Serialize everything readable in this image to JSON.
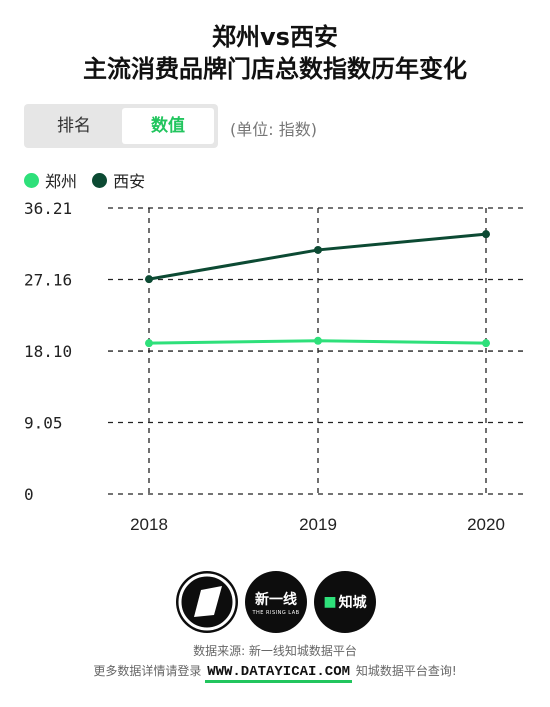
{
  "header": {
    "title_line1": "郑州vs西安",
    "title_line2": "主流消费品牌门店总数指数历年变化"
  },
  "tabs": {
    "rank_label": "排名",
    "value_label": "数值"
  },
  "unit_label": "(单位: 指数)",
  "legend": [
    {
      "label": "郑州",
      "color": "#2ee07a"
    },
    {
      "label": "西安",
      "color": "#0c4a33"
    }
  ],
  "chart_data": {
    "type": "line",
    "categories": [
      "2018",
      "2019",
      "2020"
    ],
    "series": [
      {
        "name": "郑州",
        "color": "#2ee07a",
        "values": [
          19.1,
          19.4,
          19.1
        ]
      },
      {
        "name": "西安",
        "color": "#0c4a33",
        "values": [
          27.2,
          30.9,
          32.9
        ]
      }
    ],
    "y_ticks": [
      "36.21",
      "27.16",
      "18.10",
      "9.05",
      "0"
    ],
    "ylim": [
      0,
      36.21
    ],
    "grid": true
  },
  "logos": {
    "logo2_text": "新一线",
    "logo2_sub": "THE RISING LAB",
    "logo3_text": "知城"
  },
  "footer": {
    "source": "数据来源: 新一线知城数据平台",
    "line2_prefix": "更多数据详情请登录",
    "site": "WWW.DATAYICAI.COM",
    "line2_suffix": "知城数据平台查询!"
  }
}
